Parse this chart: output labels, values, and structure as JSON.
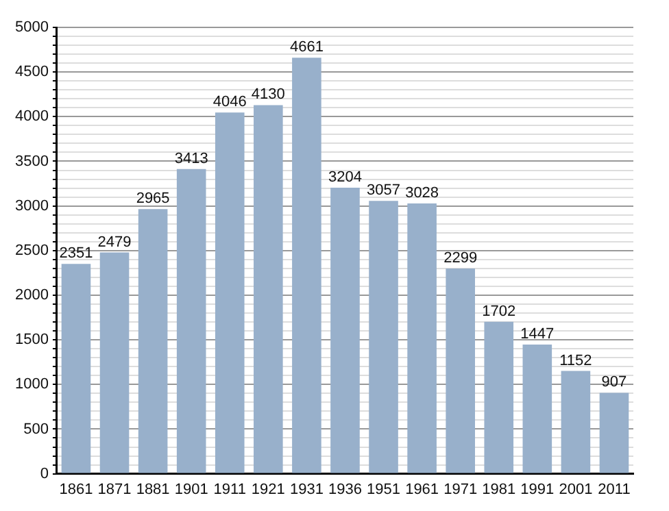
{
  "chart_data": {
    "type": "bar",
    "categories": [
      "1861",
      "1871",
      "1881",
      "1901",
      "1911",
      "1921",
      "1931",
      "1936",
      "1951",
      "1961",
      "1971",
      "1981",
      "1991",
      "2001",
      "2011"
    ],
    "values": [
      2351,
      2479,
      2965,
      3413,
      4046,
      4130,
      4661,
      3204,
      3057,
      3028,
      2299,
      1702,
      1447,
      1152,
      907
    ],
    "color": "#98b0cb",
    "data_labels": true,
    "grid": "y",
    "ylim": [
      0,
      5000
    ],
    "yticks": [
      0,
      {
        "value": 100,
        "label": null
      },
      {
        "value": 200,
        "label": null
      },
      {
        "value": 300,
        "label": null
      },
      {
        "value": 400,
        "label": null
      },
      500,
      {
        "value": 600,
        "label": null
      },
      {
        "value": 700,
        "label": null
      },
      {
        "value": 800,
        "label": null
      },
      {
        "value": 900,
        "label": null
      },
      1000,
      {
        "value": 1100,
        "label": null
      },
      {
        "value": 1200,
        "label": null
      },
      {
        "value": 1300,
        "label": null
      },
      {
        "value": 1400,
        "label": null
      },
      1500,
      {
        "value": 1600,
        "label": null
      },
      {
        "value": 1700,
        "label": null
      },
      {
        "value": 1800,
        "label": null
      },
      {
        "value": 1900,
        "label": null
      },
      2000,
      {
        "value": 2100,
        "label": null
      },
      {
        "value": 2200,
        "label": null
      },
      {
        "value": 2300,
        "label": null
      },
      {
        "value": 2400,
        "label": null
      },
      2500,
      {
        "value": 2600,
        "label": null
      },
      {
        "value": 2700,
        "label": null
      },
      {
        "value": 2800,
        "label": null
      },
      {
        "value": 2900,
        "label": null
      },
      3000,
      {
        "value": 3100,
        "label": null
      },
      {
        "value": 3200,
        "label": null
      },
      {
        "value": 3300,
        "label": null
      },
      {
        "value": 3400,
        "label": null
      },
      3500,
      {
        "value": 3600,
        "label": null
      },
      {
        "value": 3700,
        "label": null
      },
      {
        "value": 3800,
        "label": null
      },
      {
        "value": 3900,
        "label": null
      },
      4000,
      {
        "value": 4100,
        "label": null
      },
      {
        "value": 4200,
        "label": null
      },
      {
        "value": 4300,
        "label": null
      },
      {
        "value": 4400,
        "label": null
      },
      4500,
      {
        "value": 4600,
        "label": null
      },
      {
        "value": 4700,
        "label": null
      },
      {
        "value": 4800,
        "label": null
      },
      {
        "value": 4900,
        "label": null
      },
      5000
    ]
  }
}
